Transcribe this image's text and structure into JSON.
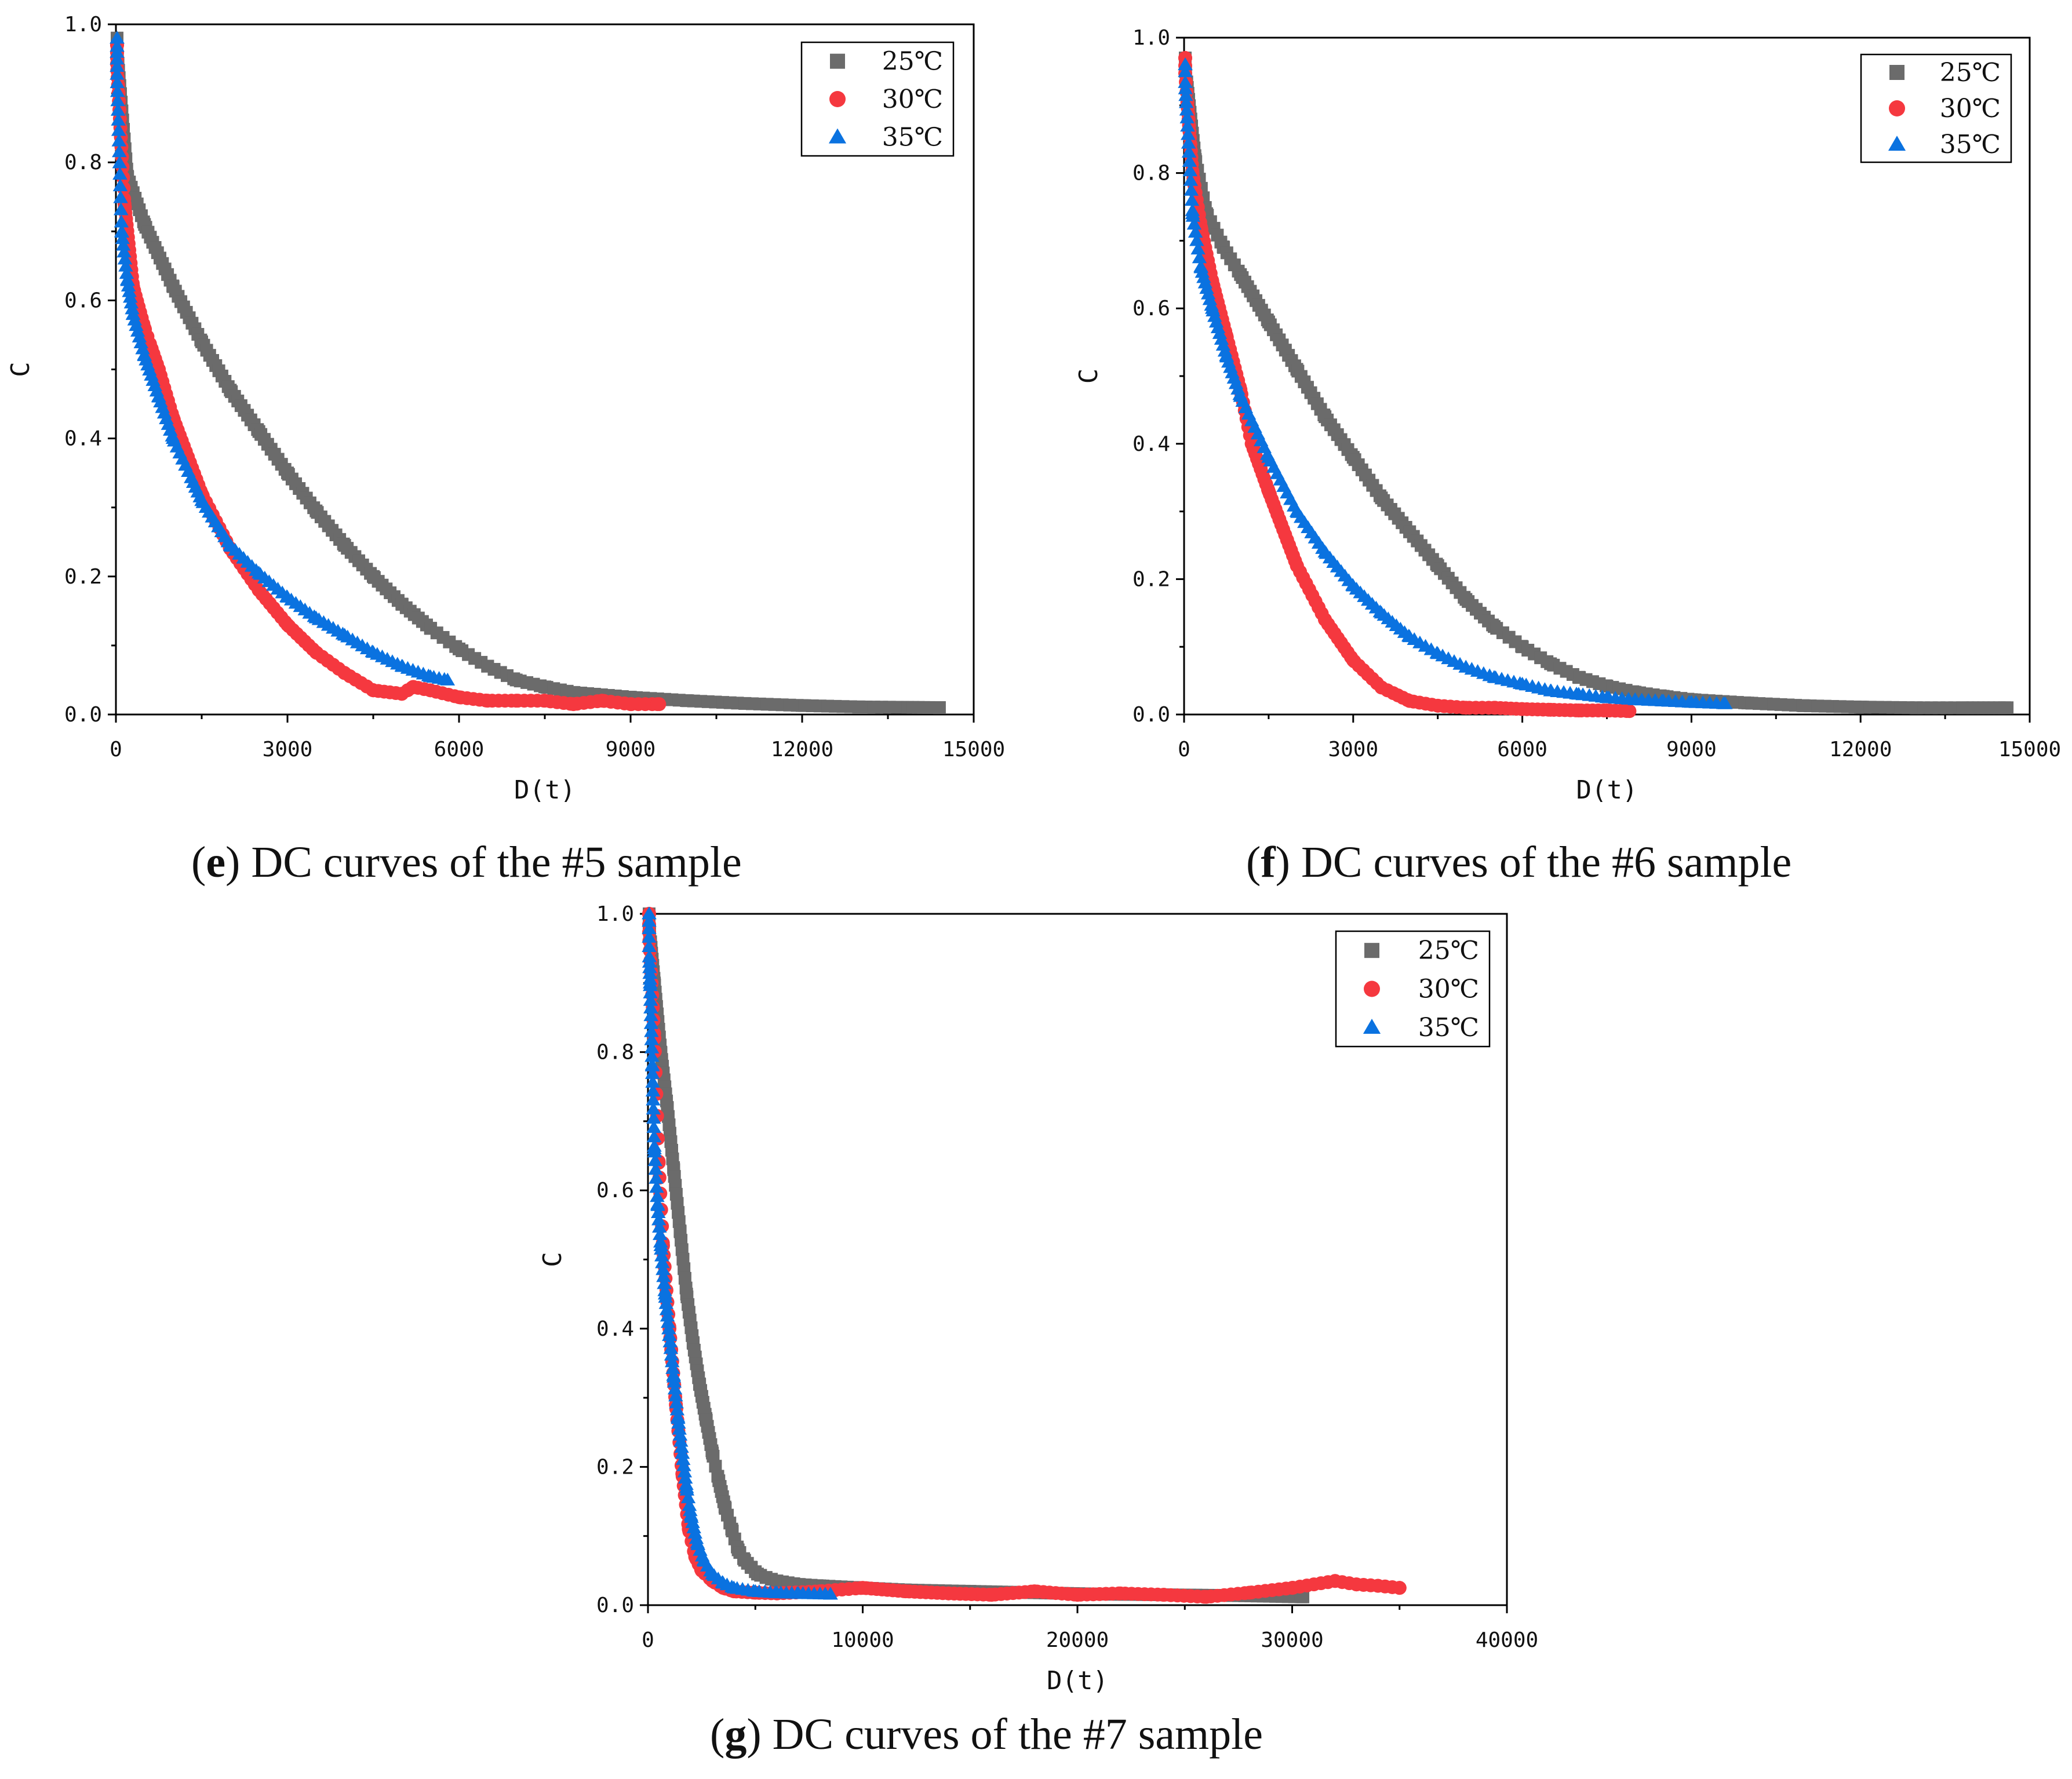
{
  "chart_data": [
    {
      "type": "scatter",
      "panel": "e",
      "caption_letter": "e",
      "caption_text": "DC curves of the #5 sample",
      "xlabel": "D(t)",
      "ylabel": "C",
      "xlim": [
        0,
        15000
      ],
      "ylim": [
        0,
        1.0
      ],
      "xticks": [
        0,
        3000,
        6000,
        9000,
        12000,
        15000
      ],
      "yticks": [
        0.0,
        0.2,
        0.4,
        0.6,
        0.8,
        1.0
      ],
      "xtick_labels": [
        "0",
        "3000",
        "6000",
        "9000",
        "12000",
        "15000"
      ],
      "ytick_labels": [
        "0.0",
        "0.2",
        "0.4",
        "0.6",
        "0.8",
        "1.0"
      ],
      "legend_position": "top-right",
      "series": [
        {
          "name": "25℃",
          "marker": "square",
          "color": "#6b6b6b",
          "x": [
            0,
            200,
            500,
            1000,
            1500,
            2000,
            2500,
            3000,
            3500,
            4000,
            4500,
            5000,
            5500,
            6000,
            6500,
            7000,
            7500,
            8000,
            9000,
            10000,
            11000,
            12000,
            13000,
            14400
          ],
          "y": [
            0.98,
            0.78,
            0.71,
            0.62,
            0.54,
            0.47,
            0.41,
            0.35,
            0.295,
            0.245,
            0.2,
            0.16,
            0.125,
            0.095,
            0.07,
            0.05,
            0.04,
            0.032,
            0.025,
            0.02,
            0.016,
            0.013,
            0.011,
            0.01
          ]
        },
        {
          "name": "30℃",
          "marker": "circle",
          "color": "#f5383f",
          "x": [
            0,
            150,
            300,
            500,
            750,
            1000,
            1500,
            2000,
            2500,
            3000,
            3500,
            4000,
            4500,
            5000,
            5200,
            5500,
            6000,
            6500,
            7000,
            7500,
            8000,
            8500,
            9000,
            9500
          ],
          "y": [
            0.97,
            0.74,
            0.62,
            0.56,
            0.5,
            0.43,
            0.32,
            0.24,
            0.18,
            0.13,
            0.09,
            0.06,
            0.035,
            0.03,
            0.04,
            0.035,
            0.025,
            0.02,
            0.02,
            0.02,
            0.015,
            0.02,
            0.015,
            0.015
          ]
        },
        {
          "name": "35℃",
          "marker": "triangle",
          "color": "#0a72e0",
          "x": [
            0,
            100,
            200,
            300,
            500,
            750,
            1000,
            1500,
            2000,
            2500,
            3000,
            3500,
            4000,
            4500,
            5000,
            5500,
            5800
          ],
          "y": [
            0.98,
            0.7,
            0.63,
            0.58,
            0.52,
            0.46,
            0.4,
            0.31,
            0.245,
            0.205,
            0.17,
            0.14,
            0.115,
            0.09,
            0.07,
            0.055,
            0.05
          ]
        }
      ]
    },
    {
      "type": "scatter",
      "panel": "f",
      "caption_letter": "f",
      "caption_text": "DC curves of the #6 sample",
      "xlabel": "D(t)",
      "ylabel": "C",
      "xlim": [
        0,
        15000
      ],
      "ylim": [
        0,
        1.0
      ],
      "xticks": [
        0,
        3000,
        6000,
        9000,
        12000,
        15000
      ],
      "yticks": [
        0.0,
        0.2,
        0.4,
        0.6,
        0.8,
        1.0
      ],
      "xtick_labels": [
        "0",
        "3000",
        "6000",
        "9000",
        "12000",
        "15000"
      ],
      "ytick_labels": [
        "0.0",
        "0.2",
        "0.4",
        "0.6",
        "0.8",
        "1.0"
      ],
      "legend_position": "top-right",
      "series": [
        {
          "name": "25℃",
          "marker": "square",
          "color": "#6b6b6b",
          "x": [
            0,
            200,
            400,
            700,
            1000,
            1500,
            2000,
            2500,
            3000,
            3500,
            4000,
            4500,
            5000,
            5500,
            6000,
            6500,
            7000,
            7500,
            8000,
            8500,
            9000,
            10000,
            11000,
            12000,
            13000,
            14600
          ],
          "y": [
            0.97,
            0.82,
            0.74,
            0.69,
            0.65,
            0.58,
            0.51,
            0.44,
            0.38,
            0.32,
            0.27,
            0.22,
            0.17,
            0.13,
            0.1,
            0.075,
            0.055,
            0.042,
            0.033,
            0.027,
            0.022,
            0.017,
            0.013,
            0.011,
            0.01,
            0.01
          ]
        },
        {
          "name": "30℃",
          "marker": "circle",
          "color": "#f5383f",
          "x": [
            0,
            150,
            300,
            500,
            750,
            1000,
            1200,
            1500,
            2000,
            2500,
            3000,
            3500,
            4000,
            4500,
            5000,
            5500,
            6000,
            6500,
            7000,
            7500,
            7900
          ],
          "y": [
            0.97,
            0.8,
            0.72,
            0.64,
            0.56,
            0.48,
            0.4,
            0.33,
            0.22,
            0.14,
            0.08,
            0.04,
            0.02,
            0.013,
            0.01,
            0.01,
            0.008,
            0.007,
            0.006,
            0.006,
            0.005
          ]
        },
        {
          "name": "35℃",
          "marker": "triangle",
          "color": "#0a72e0",
          "x": [
            0,
            150,
            300,
            500,
            750,
            1000,
            1500,
            2000,
            2500,
            3000,
            3500,
            4000,
            4500,
            5000,
            5500,
            6000,
            6500,
            7000,
            7500,
            8000,
            8500,
            9000,
            9600
          ],
          "y": [
            0.96,
            0.74,
            0.66,
            0.6,
            0.53,
            0.47,
            0.38,
            0.3,
            0.24,
            0.19,
            0.15,
            0.115,
            0.09,
            0.07,
            0.055,
            0.045,
            0.035,
            0.03,
            0.025,
            0.022,
            0.02,
            0.018,
            0.016
          ]
        }
      ]
    },
    {
      "type": "scatter",
      "panel": "g",
      "caption_letter": "g",
      "caption_text": "DC curves of the #7 sample",
      "xlabel": "D(t)",
      "ylabel": "C",
      "xlim": [
        0,
        40000
      ],
      "ylim": [
        0,
        1.0
      ],
      "xticks": [
        0,
        10000,
        20000,
        30000,
        40000
      ],
      "yticks": [
        0.0,
        0.2,
        0.4,
        0.6,
        0.8,
        1.0
      ],
      "xtick_labels": [
        "0",
        "10000",
        "20000",
        "30000",
        "40000"
      ],
      "ytick_labels": [
        "0.0",
        "0.2",
        "0.4",
        "0.6",
        "0.8",
        "1.0"
      ],
      "legend_position": "top-right",
      "series": [
        {
          "name": "25℃",
          "marker": "square",
          "color": "#6b6b6b",
          "x": [
            0,
            300,
            600,
            900,
            1200,
            1500,
            1800,
            2100,
            2400,
            2700,
            3000,
            3300,
            3600,
            3900,
            4200,
            4500,
            4800,
            5100,
            5500,
            6000,
            7000,
            8000,
            10000,
            12000,
            15000,
            18000,
            21000,
            24000,
            27000,
            30500
          ],
          "y": [
            1.0,
            0.9,
            0.8,
            0.72,
            0.63,
            0.54,
            0.45,
            0.38,
            0.32,
            0.27,
            0.22,
            0.18,
            0.14,
            0.11,
            0.08,
            0.065,
            0.055,
            0.045,
            0.04,
            0.035,
            0.03,
            0.028,
            0.025,
            0.022,
            0.02,
            0.018,
            0.016,
            0.015,
            0.014,
            0.012
          ]
        },
        {
          "name": "30℃",
          "marker": "circle",
          "color": "#f5383f",
          "x": [
            0,
            300,
            500,
            700,
            1000,
            1300,
            1600,
            1900,
            2200,
            2500,
            3000,
            3500,
            4000,
            5000,
            6000,
            8000,
            10000,
            12000,
            14000,
            16000,
            18000,
            20000,
            22000,
            24000,
            26000,
            28000,
            30000,
            32000,
            33000,
            34000,
            35000
          ],
          "y": [
            1.0,
            0.82,
            0.64,
            0.52,
            0.4,
            0.29,
            0.19,
            0.11,
            0.07,
            0.05,
            0.035,
            0.025,
            0.02,
            0.018,
            0.017,
            0.02,
            0.025,
            0.02,
            0.017,
            0.015,
            0.02,
            0.015,
            0.017,
            0.015,
            0.012,
            0.018,
            0.025,
            0.035,
            0.03,
            0.028,
            0.025
          ]
        },
        {
          "name": "35℃",
          "marker": "triangle",
          "color": "#0a72e0",
          "x": [
            0,
            100,
            200,
            300,
            450,
            600,
            800,
            1000,
            1200,
            1400,
            1600,
            1800,
            2000,
            2300,
            2600,
            3000,
            3500,
            4000,
            5000,
            6000,
            7000,
            8500
          ],
          "y": [
            1.0,
            0.9,
            0.78,
            0.66,
            0.58,
            0.52,
            0.45,
            0.39,
            0.33,
            0.27,
            0.22,
            0.17,
            0.13,
            0.09,
            0.065,
            0.045,
            0.032,
            0.025,
            0.02,
            0.018,
            0.017,
            0.016
          ]
        }
      ]
    }
  ]
}
